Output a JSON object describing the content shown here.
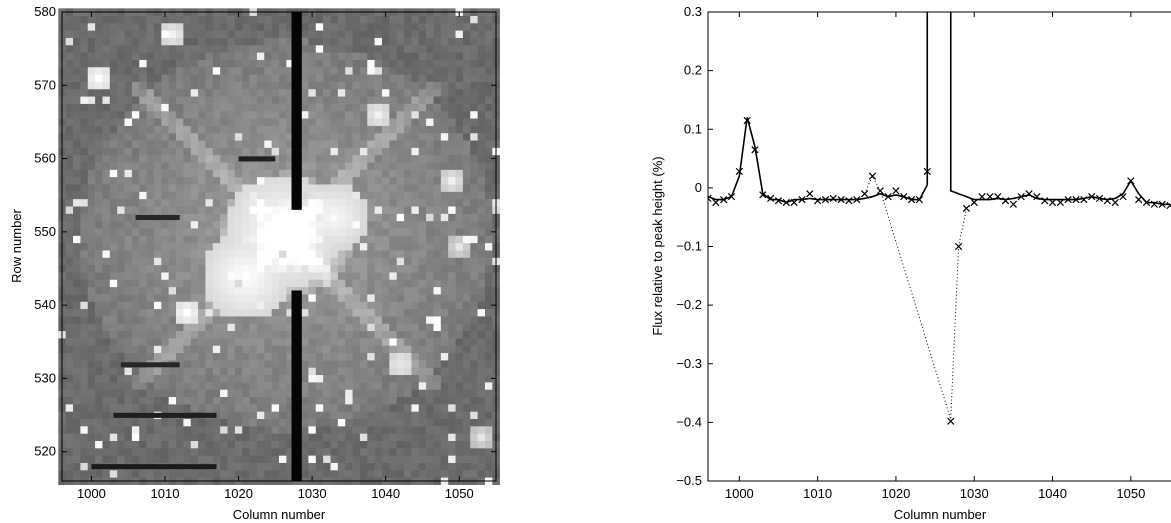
{
  "chart_data": [
    {
      "type": "heatmap",
      "xlabel": "Column number",
      "ylabel": "Row number",
      "xlim": [
        996,
        1055
      ],
      "ylim": [
        516,
        580
      ],
      "xticks": [
        1000,
        1010,
        1020,
        1030,
        1040,
        1050
      ],
      "yticks": [
        520,
        530,
        540,
        550,
        560,
        570,
        580
      ],
      "colormap": "grayscale",
      "background_level": 0.42,
      "saturated_regions": [
        {
          "x": 1026,
          "y": 550,
          "radius": 8,
          "level": 1.0
        },
        {
          "x": 1021,
          "y": 544,
          "radius": 6,
          "level": 1.0
        },
        {
          "x": 1033,
          "y": 552,
          "radius": 5,
          "level": 0.98
        },
        {
          "x": 1001,
          "y": 571,
          "radius": 2,
          "level": 1.0
        },
        {
          "x": 1011,
          "y": 577,
          "radius": 2,
          "level": 0.95
        },
        {
          "x": 1013,
          "y": 539,
          "radius": 2,
          "level": 1.0
        },
        {
          "x": 1039,
          "y": 566,
          "radius": 2,
          "level": 0.95
        },
        {
          "x": 1049,
          "y": 557,
          "radius": 1.5,
          "level": 0.95
        },
        {
          "x": 1042,
          "y": 532,
          "radius": 2,
          "level": 0.95
        },
        {
          "x": 1050,
          "y": 548,
          "radius": 1.5,
          "level": 0.9
        },
        {
          "x": 1053,
          "y": 522,
          "radius": 1.5,
          "level": 0.9
        }
      ],
      "dark_column": {
        "x_from": 1027.2,
        "x_to": 1028.6,
        "gap_from": 542,
        "gap_to": 553,
        "level": 0.02
      },
      "dark_rows": [
        {
          "y": 560.3,
          "x_from": 1020,
          "x_to": 1025,
          "level": 0.12
        },
        {
          "y": 552.3,
          "x_from": 1006,
          "x_to": 1012,
          "level": 0.15
        },
        {
          "y": 532.2,
          "x_from": 1004,
          "x_to": 1012,
          "level": 0.15
        },
        {
          "y": 525.3,
          "x_from": 1003,
          "x_to": 1017,
          "level": 0.12
        },
        {
          "y": 518.3,
          "x_from": 1000,
          "x_to": 1017,
          "level": 0.1
        }
      ]
    },
    {
      "type": "line",
      "xlabel": "Column number",
      "ylabel": "Flux relative to peak height (%)",
      "xlim": [
        996,
        1055
      ],
      "ylim": [
        -0.5,
        0.3
      ],
      "xticks": [
        1000,
        1010,
        1020,
        1030,
        1040,
        1050
      ],
      "yticks": [
        -0.5,
        -0.4,
        -0.3,
        -0.2,
        -0.1,
        0,
        0.1,
        0.2,
        0.3
      ],
      "series": [
        {
          "style": "solid",
          "x": [
            996,
            997,
            998,
            999,
            1000,
            1001,
            1002,
            1003,
            1004,
            1005,
            1006,
            1007,
            1008,
            1009,
            1010,
            1011,
            1012,
            1013,
            1014,
            1015,
            1016,
            1017,
            1018,
            1019,
            1020,
            1021,
            1022,
            1023,
            1024,
            1024
          ],
          "y": [
            -0.015,
            -0.02,
            -0.02,
            -0.015,
            0.02,
            0.12,
            0.07,
            -0.01,
            -0.02,
            -0.02,
            -0.025,
            -0.02,
            -0.02,
            -0.018,
            -0.02,
            -0.02,
            -0.02,
            -0.02,
            -0.02,
            -0.02,
            -0.018,
            -0.015,
            -0.01,
            -0.015,
            -0.012,
            -0.015,
            -0.02,
            -0.02,
            0.005,
            0.3
          ]
        },
        {
          "style": "solid",
          "x": [
            1027,
            1027,
            1028,
            1029,
            1030,
            1031,
            1032,
            1033,
            1034,
            1035,
            1036,
            1037,
            1038,
            1039,
            1040,
            1041,
            1042,
            1043,
            1044,
            1045,
            1046,
            1047,
            1048,
            1049,
            1050,
            1051,
            1052,
            1053,
            1054,
            1055
          ],
          "y": [
            0.3,
            -0.005,
            -0.01,
            -0.015,
            -0.02,
            -0.02,
            -0.02,
            -0.018,
            -0.02,
            -0.018,
            -0.015,
            -0.012,
            -0.018,
            -0.02,
            -0.02,
            -0.02,
            -0.02,
            -0.02,
            -0.018,
            -0.015,
            -0.018,
            -0.02,
            -0.018,
            -0.01,
            0.012,
            -0.01,
            -0.025,
            -0.025,
            -0.028,
            -0.028
          ]
        },
        {
          "style": "dotted",
          "x": [
            1016,
            1017,
            1018,
            1027,
            1028,
            1029,
            1030
          ],
          "y": [
            -0.01,
            0.02,
            -0.005,
            -0.395,
            -0.1,
            -0.035,
            -0.025
          ]
        },
        {
          "style": "markers",
          "marker": "x",
          "x": [
            996,
            997,
            998,
            999,
            1000,
            1001,
            1002,
            1003,
            1004,
            1005,
            1006,
            1007,
            1008,
            1009,
            1010,
            1011,
            1012,
            1013,
            1014,
            1015,
            1016,
            1017,
            1018,
            1019,
            1020,
            1021,
            1022,
            1023,
            1024,
            1027,
            1028,
            1029,
            1030,
            1031,
            1032,
            1033,
            1034,
            1035,
            1036,
            1037,
            1038,
            1039,
            1040,
            1041,
            1042,
            1043,
            1044,
            1045,
            1046,
            1047,
            1048,
            1049,
            1050,
            1051,
            1052,
            1053,
            1054,
            1055
          ],
          "y": [
            -0.018,
            -0.025,
            -0.02,
            -0.015,
            0.028,
            0.115,
            0.065,
            -0.012,
            -0.018,
            -0.022,
            -0.025,
            -0.025,
            -0.02,
            -0.01,
            -0.022,
            -0.02,
            -0.018,
            -0.02,
            -0.022,
            -0.02,
            -0.01,
            0.02,
            -0.005,
            -0.015,
            -0.005,
            -0.015,
            -0.02,
            -0.02,
            0.028,
            -0.398,
            -0.1,
            -0.035,
            -0.025,
            -0.015,
            -0.015,
            -0.015,
            -0.022,
            -0.028,
            -0.015,
            -0.01,
            -0.015,
            -0.022,
            -0.025,
            -0.025,
            -0.02,
            -0.02,
            -0.02,
            -0.015,
            -0.018,
            -0.022,
            -0.025,
            -0.015,
            0.012,
            -0.02,
            -0.025,
            -0.028,
            -0.028,
            -0.03
          ]
        }
      ]
    }
  ]
}
